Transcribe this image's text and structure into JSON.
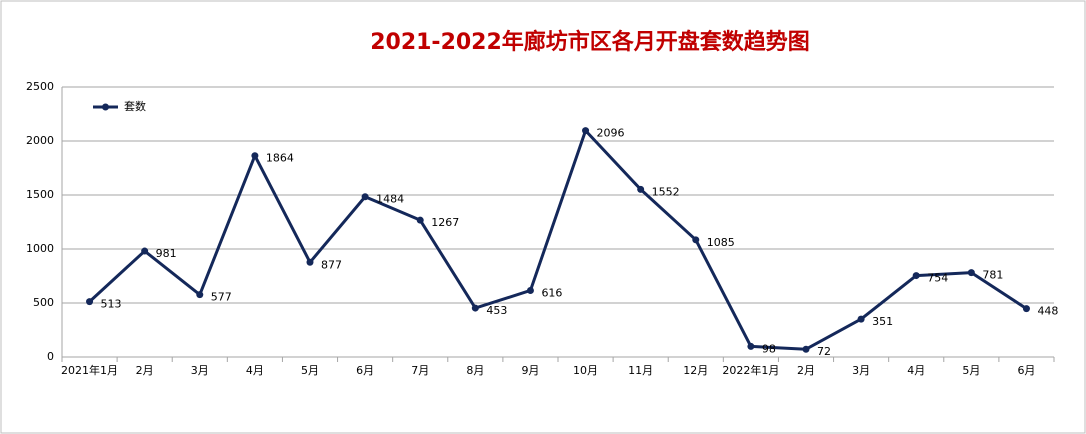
{
  "chart_data": {
    "type": "line",
    "title": "2021-2022年廊坊市区各月开盘套数趋势图",
    "categories": [
      "2021年1月",
      "2月",
      "3月",
      "4月",
      "5月",
      "6月",
      "7月",
      "8月",
      "9月",
      "10月",
      "11月",
      "12月",
      "2022年1月",
      "2月",
      "3月",
      "4月",
      "5月",
      "6月"
    ],
    "series": [
      {
        "name": "套数",
        "color": "#14285a",
        "values": [
          513,
          981,
          577,
          1864,
          877,
          1484,
          1267,
          453,
          616,
          2096,
          1552,
          1085,
          98,
          72,
          351,
          754,
          781,
          448
        ]
      }
    ],
    "ylim": [
      0,
      2500
    ],
    "yticks": [
      0,
      500,
      1000,
      1500,
      2000,
      2500
    ],
    "grid": true,
    "legend": "top-left"
  }
}
